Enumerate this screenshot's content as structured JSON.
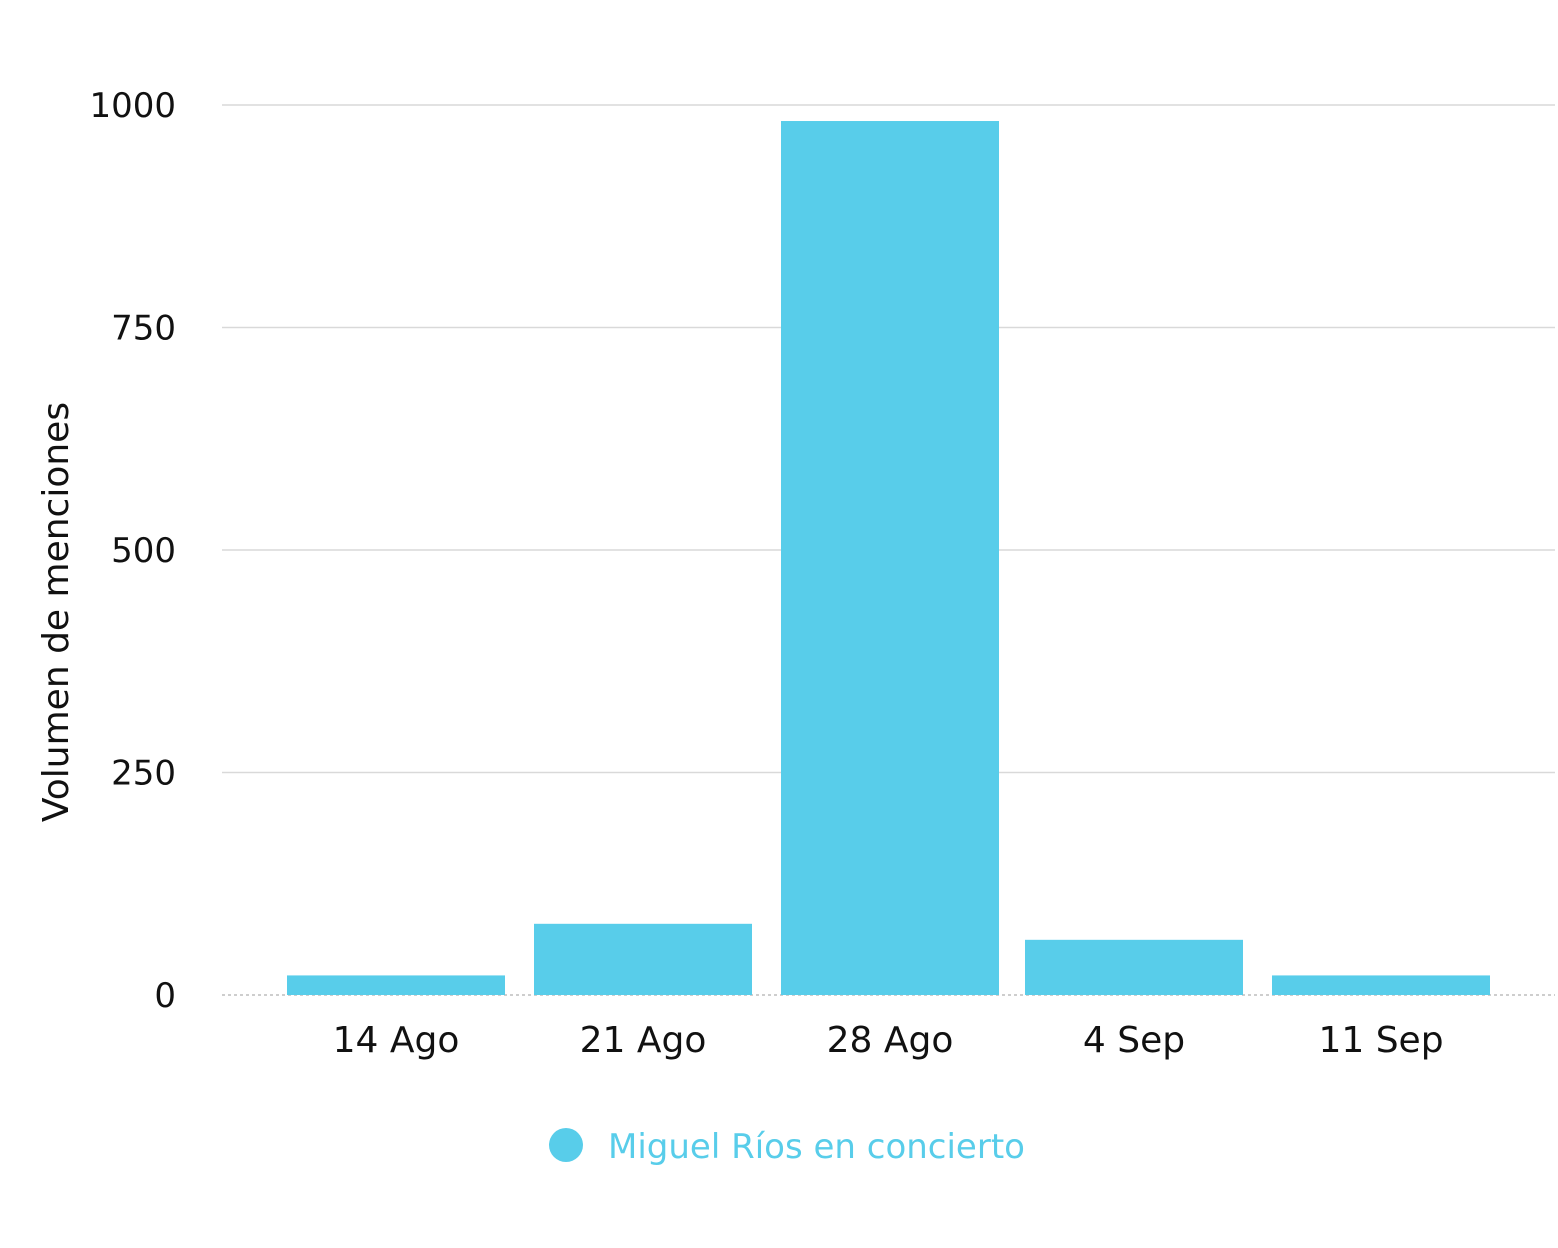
{
  "chart_data": {
    "type": "bar",
    "title": "",
    "xlabel": "",
    "ylabel": "Volumen de menciones",
    "categories": [
      "14 Ago",
      "21 Ago",
      "28 Ago",
      "4 Sep",
      "11 Sep"
    ],
    "series": [
      {
        "name": "Miguel Ríos en concierto",
        "color": "#58CDEA",
        "values": [
          22,
          80,
          982,
          62,
          22
        ]
      }
    ],
    "ylim": [
      0,
      1000
    ],
    "yticks": [
      "0",
      "250",
      "500",
      "750",
      "1000"
    ],
    "grid": true,
    "legend": "bottom-center"
  }
}
